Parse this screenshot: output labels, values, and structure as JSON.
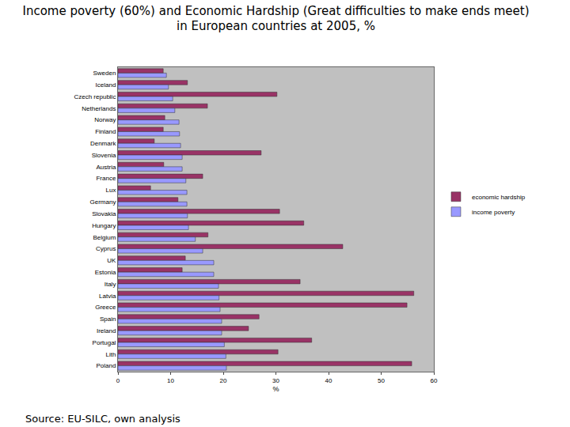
{
  "chart_data": {
    "type": "bar",
    "orientation": "horizontal",
    "title": "Income poverty (60%) and Economic Hardship (Great difficulties to make ends meet)\nin European countries at 2005, %",
    "x_label": "%",
    "source": "Source: EU-SILC, own analysis",
    "categories": [
      "Sweden",
      "Iceland",
      "Czech republic",
      "Netherlands",
      "Norway",
      "Finland",
      "Denmark",
      "Slovenia",
      "Austria",
      "France",
      "Lux",
      "Germany",
      "Slovakia",
      "Hungary",
      "Belgium",
      "Cyprus",
      "UK",
      "Estonia",
      "Italy",
      "Latvia",
      "Greece",
      "Spain",
      "Ireland",
      "Portugal",
      "Lith",
      "Poland"
    ],
    "series": [
      {
        "name": "economic hardship",
        "color": "#993366",
        "values": [
          8.6,
          13.2,
          30.2,
          17.0,
          8.9,
          8.6,
          6.9,
          27.2,
          8.7,
          16.1,
          6.2,
          11.4,
          30.7,
          35.3,
          17.1,
          42.7,
          12.8,
          12.2,
          34.6,
          56.2,
          54.9,
          26.8,
          24.8,
          36.8,
          30.4,
          55.8
        ]
      },
      {
        "name": "income poverty",
        "color": "#9999ff",
        "values": [
          9.2,
          9.6,
          10.4,
          10.8,
          11.6,
          11.7,
          11.9,
          12.2,
          12.2,
          12.9,
          13.1,
          13.1,
          13.2,
          13.4,
          14.7,
          16.1,
          18.2,
          18.2,
          19.1,
          19.2,
          19.4,
          19.7,
          19.7,
          20.2,
          20.5,
          20.6
        ]
      }
    ],
    "xlim": [
      0,
      60
    ],
    "xticks": [
      0,
      10,
      20,
      30,
      40,
      50,
      60
    ],
    "grid": false,
    "legend": "right"
  }
}
